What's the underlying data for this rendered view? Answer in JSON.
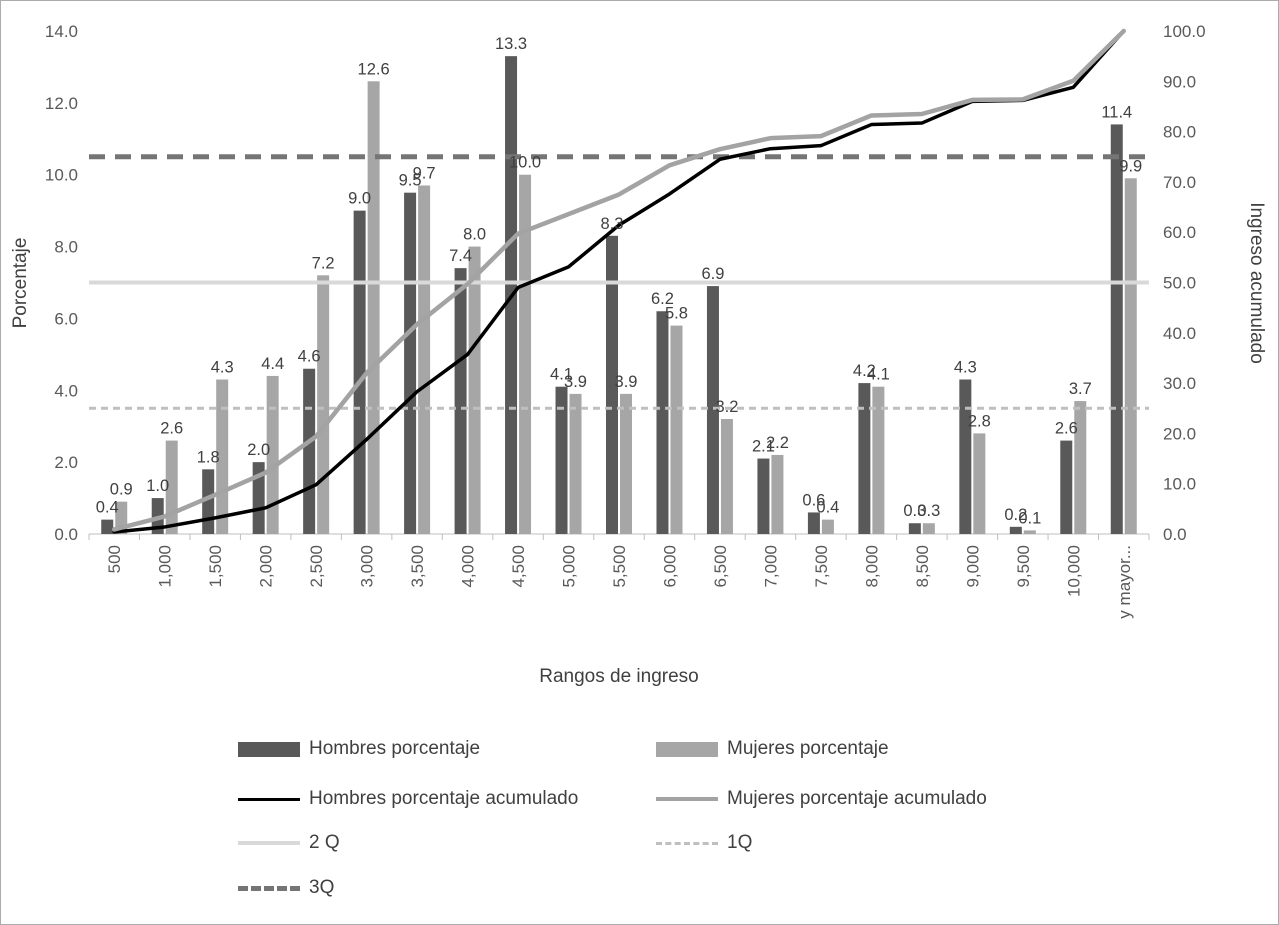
{
  "chart_data": {
    "type": "combo",
    "title": "",
    "xlabel": "Rangos de ingreso",
    "ylabel_left": "Porcentaje",
    "ylabel_right": "Ingreso acumulado",
    "y_left": {
      "min": 0,
      "max": 14,
      "step": 2
    },
    "y_right": {
      "min": 0,
      "max": 100,
      "step": 10
    },
    "grid": false,
    "legend_position": "bottom",
    "categories": [
      "500",
      "1,000",
      "1,500",
      "2,000",
      "2,500",
      "3,000",
      "3,500",
      "4,000",
      "4,500",
      "5,000",
      "5,500",
      "6,000",
      "6,500",
      "7,000",
      "7,500",
      "8,000",
      "8,500",
      "9,000",
      "9,500",
      "10,000",
      "y mayor..."
    ],
    "series": [
      {
        "name": "Hombres porcentaje",
        "type": "bar",
        "axis": "left",
        "color": "#595959",
        "values": [
          0.4,
          1.0,
          1.8,
          2.0,
          4.6,
          9.0,
          9.5,
          7.4,
          13.3,
          4.1,
          8.3,
          6.2,
          6.9,
          2.1,
          0.6,
          4.2,
          0.3,
          4.3,
          0.2,
          2.6,
          11.4
        ]
      },
      {
        "name": "Mujeres porcentaje",
        "type": "bar",
        "axis": "left",
        "color": "#a6a6a6",
        "values": [
          0.9,
          2.6,
          4.3,
          4.4,
          7.2,
          12.6,
          9.7,
          8.0,
          10.0,
          3.9,
          3.9,
          5.8,
          3.2,
          2.2,
          0.4,
          4.1,
          0.3,
          2.8,
          0.1,
          3.7,
          9.9
        ]
      },
      {
        "name": "Hombres porcentaje acumulado",
        "type": "line",
        "axis": "right",
        "color": "#000000",
        "width": 3.5,
        "values": [
          0.4,
          1.4,
          3.2,
          5.2,
          9.8,
          18.8,
          28.3,
          35.7,
          49.0,
          53.1,
          61.4,
          67.6,
          74.5,
          76.6,
          77.2,
          81.4,
          81.7,
          86.0,
          86.2,
          88.8,
          100.0
        ]
      },
      {
        "name": "Mujeres porcentaje acumulado",
        "type": "line",
        "axis": "right",
        "color": "#a3a3a3",
        "width": 4.5,
        "values": [
          0.9,
          3.5,
          7.8,
          12.2,
          19.4,
          32.0,
          41.7,
          49.7,
          59.7,
          63.6,
          67.5,
          73.3,
          76.5,
          78.7,
          79.1,
          83.2,
          83.5,
          86.3,
          86.4,
          90.1,
          100.0
        ]
      }
    ],
    "reference_lines": [
      {
        "name": "2 Q",
        "axis": "right",
        "value": 50,
        "color": "#d9d9d9",
        "dash": "",
        "width": 4
      },
      {
        "name": "1Q",
        "axis": "right",
        "value": 25,
        "color": "#bfbfbf",
        "dash": "7 5",
        "width": 3
      },
      {
        "name": "3Q",
        "axis": "right",
        "value": 75,
        "color": "#757575",
        "dash": "16 10",
        "width": 5
      }
    ],
    "bar_labels": true
  },
  "legend": {
    "items": [
      {
        "label": "Hombres porcentaje",
        "swatch": "bar",
        "color": "#595959",
        "width": 15,
        "dash": false
      },
      {
        "label": "Mujeres porcentaje",
        "swatch": "bar",
        "color": "#a6a6a6",
        "width": 15,
        "dash": false
      },
      {
        "label": "Hombres porcentaje acumulado",
        "swatch": "line",
        "color": "#000000",
        "width": 3,
        "dash": false
      },
      {
        "label": "Mujeres porcentaje acumulado",
        "swatch": "line",
        "color": "#a3a3a3",
        "width": 4,
        "dash": false
      },
      {
        "label": "2 Q",
        "swatch": "line",
        "color": "#d9d9d9",
        "width": 4,
        "dash": false
      },
      {
        "label": "1Q",
        "swatch": "line",
        "color": "#bfbfbf",
        "width": 3,
        "dash": true
      },
      {
        "label": "3Q",
        "swatch": "line",
        "color": "#757575",
        "width": 5,
        "dash": true
      }
    ]
  }
}
